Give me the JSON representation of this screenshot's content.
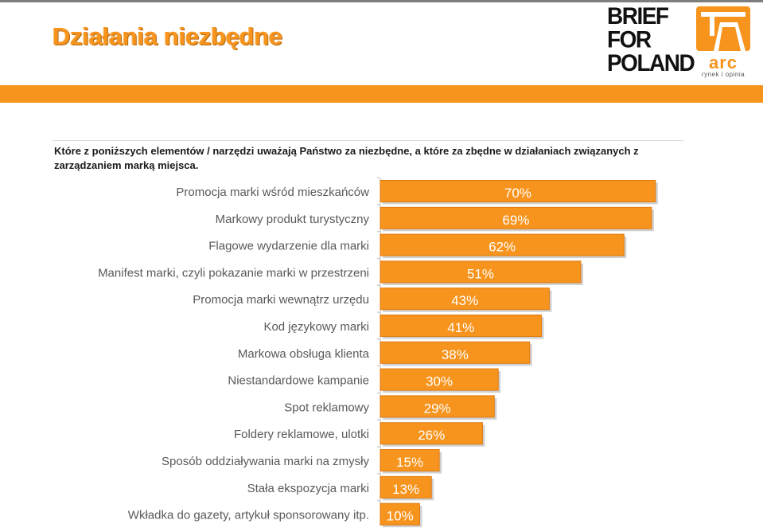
{
  "header": {
    "title": "Działania niezbędne",
    "brand_lines": [
      "BRIEF",
      "FOR",
      "POLAND"
    ],
    "arc_word": "arc",
    "arc_tagline": "rynek i opinia"
  },
  "question": "Które z poniższych elementów / narzędzi uważają Państwo za niezbędne, a które za zbędne w działaniach związanych z zarządzaniem marką miejsca.",
  "colors": {
    "accent": "#f7941d",
    "bar": "#f7941d",
    "bar_border": "#e07a10",
    "label_text": "#595959"
  },
  "chart_data": {
    "type": "bar",
    "orientation": "horizontal",
    "title": "",
    "xlabel": "",
    "ylabel": "",
    "xlim": [
      0,
      70
    ],
    "grid": false,
    "legend": false,
    "categories": [
      "Promocja marki wśród mieszkańców",
      "Markowy produkt turystyczny",
      "Flagowe wydarzenie dla marki",
      "Manifest marki, czyli pokazanie marki w przestrzeni",
      "Promocja marki wewnątrz urzędu",
      "Kod językowy marki",
      "Markowa obsługa klienta",
      "Niestandardowe kampanie",
      "Spot reklamowy",
      "Foldery reklamowe, ulotki",
      "Sposób oddziaływania marki na zmysły",
      "Stała ekspozycja marki",
      "Wkładka do gazety, artykuł sponsorowany itp."
    ],
    "values": [
      70,
      69,
      62,
      51,
      43,
      41,
      38,
      30,
      29,
      26,
      15,
      13,
      10
    ],
    "value_labels": [
      "70%",
      "69%",
      "62%",
      "51%",
      "43%",
      "41%",
      "38%",
      "30%",
      "29%",
      "26%",
      "15%",
      "13%",
      "10%"
    ]
  }
}
